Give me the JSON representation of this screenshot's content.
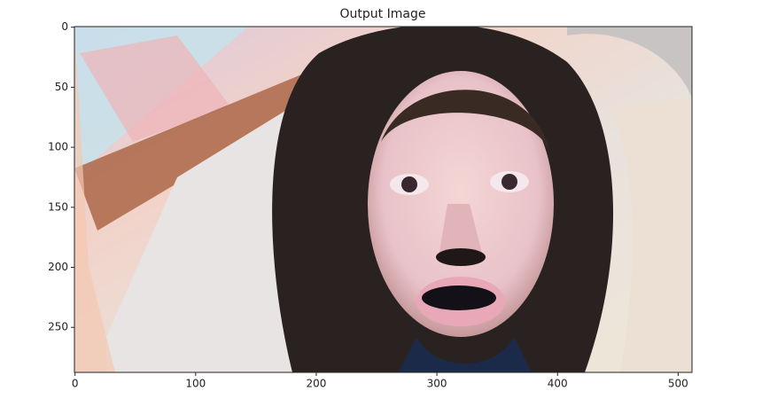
{
  "chart_data": {
    "type": "image",
    "title": "Output Image",
    "xlim": [
      -0.5,
      511.5
    ],
    "ylim": [
      287.5,
      -0.5
    ],
    "xticks": [
      0,
      100,
      200,
      300,
      400,
      500
    ],
    "yticks": [
      0,
      50,
      100,
      150,
      200,
      250
    ]
  }
}
